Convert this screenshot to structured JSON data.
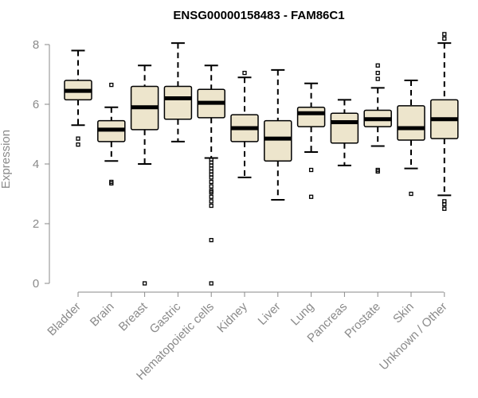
{
  "chart_data": {
    "type": "boxplot",
    "title": "ENSG00000158483 - FAM86C1",
    "ylabel": "Expression",
    "xlabel": "",
    "ylim": [
      0,
      8.3
    ],
    "yticks": [
      0,
      2,
      4,
      6,
      8
    ],
    "categories": [
      "Bladder",
      "Brain",
      "Breast",
      "Gastric",
      "Hematopoietic cells",
      "Kidney",
      "Liver",
      "Lung",
      "Pancreas",
      "Prostate",
      "Skin",
      "Unknown / Other"
    ],
    "boxes": [
      {
        "category": "Bladder",
        "whisker_low": 5.3,
        "q1": 6.15,
        "median": 6.45,
        "q3": 6.8,
        "whisker_high": 7.8,
        "outliers": [
          4.85,
          4.65
        ]
      },
      {
        "category": "Brain",
        "whisker_low": 4.1,
        "q1": 4.75,
        "median": 5.15,
        "q3": 5.45,
        "whisker_high": 5.9,
        "outliers": [
          6.65,
          3.4,
          3.35
        ]
      },
      {
        "category": "Breast",
        "whisker_low": 4.0,
        "q1": 5.15,
        "median": 5.9,
        "q3": 6.6,
        "whisker_high": 7.3,
        "outliers": [
          0.0
        ]
      },
      {
        "category": "Gastric",
        "whisker_low": 4.75,
        "q1": 5.5,
        "median": 6.2,
        "q3": 6.6,
        "whisker_high": 8.05,
        "outliers": []
      },
      {
        "category": "Hematopoietic cells",
        "whisker_low": 4.2,
        "q1": 5.55,
        "median": 6.05,
        "q3": 6.5,
        "whisker_high": 7.3,
        "outliers": [
          4.15,
          4.05,
          3.95,
          3.85,
          3.75,
          3.65,
          3.55,
          3.4,
          3.25,
          3.1,
          3.05,
          2.9,
          2.75,
          2.6,
          1.45,
          0.0
        ]
      },
      {
        "category": "Kidney",
        "whisker_low": 3.55,
        "q1": 4.75,
        "median": 5.2,
        "q3": 5.65,
        "whisker_high": 6.9,
        "outliers": [
          7.05
        ]
      },
      {
        "category": "Liver",
        "whisker_low": 2.8,
        "q1": 4.1,
        "median": 4.85,
        "q3": 5.45,
        "whisker_high": 7.15,
        "outliers": []
      },
      {
        "category": "Lung",
        "whisker_low": 4.4,
        "q1": 5.25,
        "median": 5.7,
        "q3": 5.9,
        "whisker_high": 6.7,
        "outliers": [
          3.8,
          2.9
        ]
      },
      {
        "category": "Pancreas",
        "whisker_low": 3.95,
        "q1": 4.7,
        "median": 5.4,
        "q3": 5.7,
        "whisker_high": 6.15,
        "outliers": []
      },
      {
        "category": "Prostate",
        "whisker_low": 4.6,
        "q1": 5.25,
        "median": 5.5,
        "q3": 5.8,
        "whisker_high": 6.55,
        "outliers": [
          7.3,
          7.05,
          6.85,
          3.8,
          3.75
        ]
      },
      {
        "category": "Skin",
        "whisker_low": 3.85,
        "q1": 4.8,
        "median": 5.2,
        "q3": 5.95,
        "whisker_high": 6.8,
        "outliers": [
          3.0
        ]
      },
      {
        "category": "Unknown / Other",
        "whisker_low": 2.95,
        "q1": 4.85,
        "median": 5.5,
        "q3": 6.15,
        "whisker_high": 8.05,
        "outliers": [
          8.35,
          8.2,
          2.75,
          2.65,
          2.5
        ]
      }
    ],
    "box_fill": "#ede5cc",
    "box_stroke": "#000000",
    "axis_color": "#8a8a8a",
    "grid": false
  }
}
